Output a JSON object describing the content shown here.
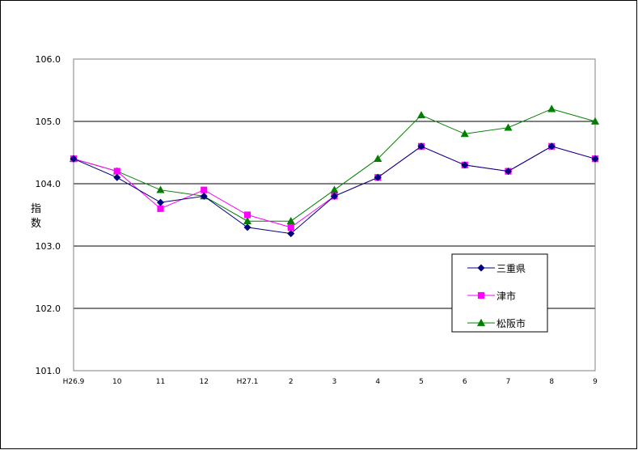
{
  "chart_data": {
    "type": "line",
    "title": "",
    "xlabel": "",
    "ylabel": "指数",
    "ylabel_chars": [
      "指",
      "数"
    ],
    "ylim": [
      101.0,
      106.0
    ],
    "yticks": [
      "101.0",
      "102.0",
      "103.0",
      "104.0",
      "105.0",
      "106.0"
    ],
    "grid": true,
    "legend_position": "bottom-right",
    "categories": [
      "H26.9",
      "10",
      "11",
      "12",
      "H27.1",
      "2",
      "3",
      "4",
      "5",
      "6",
      "7",
      "8",
      "9"
    ],
    "series": [
      {
        "name": "三重県",
        "color": "#000080",
        "marker": "diamond",
        "values": [
          104.4,
          104.1,
          103.7,
          103.8,
          103.3,
          103.2,
          103.8,
          104.1,
          104.6,
          104.3,
          104.2,
          104.6,
          104.4
        ]
      },
      {
        "name": "津市",
        "color": "#ff00ff",
        "marker": "square",
        "values": [
          104.4,
          104.2,
          103.6,
          103.9,
          103.5,
          103.3,
          103.8,
          104.1,
          104.6,
          104.3,
          104.2,
          104.6,
          104.4
        ]
      },
      {
        "name": "松阪市",
        "color": "#008000",
        "marker": "triangle",
        "values": [
          104.4,
          104.2,
          103.9,
          103.8,
          103.4,
          103.4,
          103.9,
          104.4,
          105.1,
          104.8,
          104.9,
          105.2,
          105.0
        ]
      }
    ]
  }
}
